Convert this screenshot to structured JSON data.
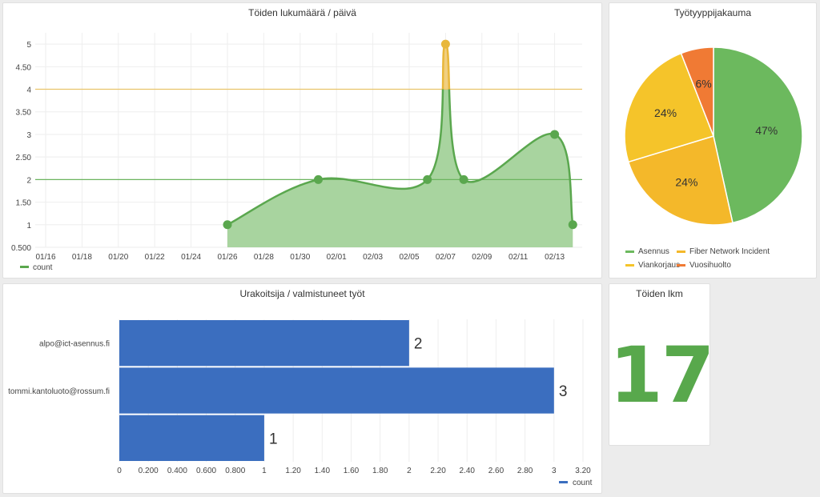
{
  "colors": {
    "line_green": "#5aa74e",
    "area_green": "#a8d49f",
    "point_yellow": "#e8b73b",
    "area_yellow": "#f1cf80",
    "threshold_yellow": "#e9c46a",
    "threshold_green": "#6cb45f",
    "bar_blue": "#3b6ebf",
    "pie_green": "#6cb95e",
    "pie_yellow": "#f5c42a",
    "pie_yellow2": "#f4b82a",
    "pie_orange": "#f07a34",
    "big_number": "#58a84c"
  },
  "panels": {
    "line_chart": {
      "title": "Töiden lukumäärä / päivä"
    },
    "pie_chart": {
      "title": "Työtyyppijakauma"
    },
    "bar_chart": {
      "title": "Urakoitsija / valmistuneet työt"
    },
    "stat": {
      "title": "Töiden lkm",
      "value": "17"
    }
  },
  "chart_data": [
    {
      "type": "area",
      "title": "Töiden lukumäärä / päivä",
      "x_ticks": [
        "01/16",
        "01/18",
        "01/20",
        "01/22",
        "01/24",
        "01/26",
        "01/28",
        "01/30",
        "02/01",
        "02/03",
        "02/05",
        "02/07",
        "02/09",
        "02/11",
        "02/13"
      ],
      "y_ticks": [
        "0.500",
        "1",
        "1.50",
        "2",
        "2.50",
        "3",
        "3.50",
        "4",
        "4.50",
        "5"
      ],
      "ylim": [
        0.5,
        5.25
      ],
      "series": [
        {
          "name": "count",
          "x": [
            "01/26",
            "01/31",
            "02/06",
            "02/07",
            "02/08",
            "02/13",
            "02/14"
          ],
          "y": [
            1,
            2,
            2,
            5,
            2,
            3,
            1
          ]
        }
      ],
      "thresholds": [
        2,
        4
      ],
      "legend": "bottom-left",
      "grid": true
    },
    {
      "type": "pie",
      "title": "Työtyyppijakauma",
      "slices": [
        {
          "name": "Asennus",
          "value": 47,
          "label": "47%"
        },
        {
          "name": "Fiber Network Incident",
          "value": 24,
          "label": "24%"
        },
        {
          "name": "Viankorjaus",
          "value": 24,
          "label": "24%"
        },
        {
          "name": "Vuosihuolto",
          "value": 6,
          "label": "6%"
        }
      ],
      "legend": "bottom"
    },
    {
      "type": "bar",
      "title": "Urakoitsija / valmistuneet työt",
      "categories": [
        "alpo@ict-asennus.fi",
        "tommi.kantoluoto@rossum.fi",
        ""
      ],
      "series": [
        {
          "name": "count",
          "values": [
            2,
            3,
            1
          ]
        }
      ],
      "x_ticks": [
        "0",
        "0.200",
        "0.400",
        "0.600",
        "0.800",
        "1",
        "1.20",
        "1.40",
        "1.60",
        "1.80",
        "2",
        "2.20",
        "2.40",
        "2.60",
        "2.80",
        "3",
        "3.20"
      ],
      "xlim": [
        0,
        3.2
      ],
      "legend": "bottom-right",
      "grid": true
    }
  ]
}
